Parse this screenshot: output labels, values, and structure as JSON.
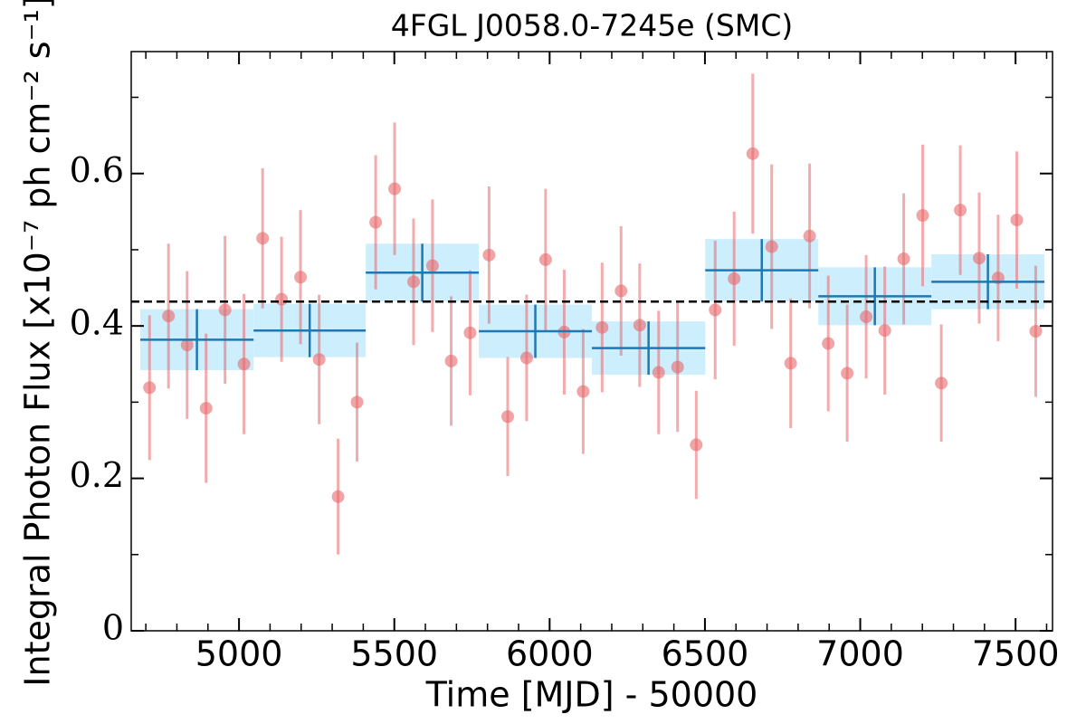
{
  "chart_data": {
    "type": "binned-light-curve",
    "title": "4FGL J0058.0-7245e (SMC)",
    "x_label": "Time [MJD] - 50000",
    "y_label": "Integral Photon Flux [x10⁻⁷ ph cm⁻² s⁻¹]",
    "xlim": [
      4653,
      7619
    ],
    "ylim": [
      0,
      0.76
    ],
    "xticks": [
      5000,
      5500,
      6000,
      6500,
      7000,
      7500
    ],
    "yticks": [
      0,
      0.2,
      0.4,
      0.6
    ],
    "xminorticks": [
      4700,
      4800,
      4900,
      5100,
      5200,
      5300,
      5400,
      5600,
      5700,
      5800,
      5900,
      6100,
      6200,
      6300,
      6400,
      6600,
      6700,
      6800,
      6900,
      7100,
      7200,
      7300,
      7400,
      7600
    ],
    "yminorticks": [
      0.1,
      0.3,
      0.5,
      0.7
    ],
    "points": {
      "color": "#e8676b",
      "x": [
        4712,
        4773,
        4833,
        4894,
        4955,
        5016,
        5076,
        5137,
        5198,
        5258,
        5319,
        5380,
        5440,
        5501,
        5562,
        5623,
        5683,
        5744,
        5805,
        5865,
        5926,
        5987,
        6047,
        6108,
        6169,
        6230,
        6290,
        6351,
        6412,
        6472,
        6533,
        6594,
        6654,
        6715,
        6776,
        6837,
        6897,
        6958,
        7019,
        7079,
        7140,
        7201,
        7261,
        7322,
        7383,
        7444,
        7504,
        7565
      ],
      "values": [
        0.319,
        0.413,
        0.375,
        0.292,
        0.421,
        0.35,
        0.515,
        0.435,
        0.464,
        0.356,
        0.176,
        0.3,
        0.536,
        0.58,
        0.458,
        0.479,
        0.354,
        0.391,
        0.493,
        0.281,
        0.358,
        0.487,
        0.392,
        0.314,
        0.398,
        0.446,
        0.401,
        0.339,
        0.346,
        0.244,
        0.421,
        0.462,
        0.626,
        0.504,
        0.351,
        0.518,
        0.377,
        0.338,
        0.412,
        0.394,
        0.488,
        0.545,
        0.325,
        0.552,
        0.489,
        0.463,
        0.539,
        0.393
      ],
      "errors": [
        0.095,
        0.095,
        0.097,
        0.098,
        0.097,
        0.092,
        0.092,
        0.082,
        0.088,
        0.085,
        0.076,
        0.078,
        0.088,
        0.087,
        0.083,
        0.087,
        0.085,
        0.082,
        0.09,
        0.078,
        0.083,
        0.093,
        0.082,
        0.082,
        0.085,
        0.085,
        0.081,
        0.081,
        0.085,
        0.071,
        0.091,
        0.088,
        0.105,
        0.108,
        0.085,
        0.095,
        0.089,
        0.09,
        0.081,
        0.084,
        0.086,
        0.093,
        0.077,
        0.085,
        0.086,
        0.083,
        0.09,
        0.086
      ]
    },
    "bins": {
      "color": "#1f77b4",
      "band_color": "#cdeefd",
      "edges": [
        4682,
        5047,
        5408,
        5772,
        6136,
        6501,
        6865,
        7229,
        7593
      ],
      "values": [
        0.382,
        0.394,
        0.47,
        0.393,
        0.371,
        0.473,
        0.439,
        0.458
      ],
      "errors": [
        0.04,
        0.035,
        0.038,
        0.035,
        0.035,
        0.041,
        0.038,
        0.036
      ]
    },
    "mean": 0.432
  }
}
